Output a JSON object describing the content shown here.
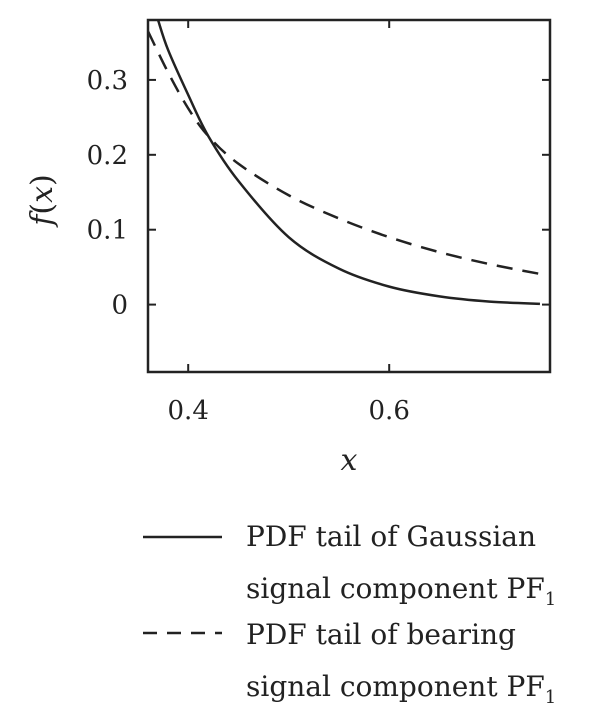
{
  "chart_data": {
    "type": "line",
    "xlabel": "x",
    "ylabel_parts": {
      "f": "f",
      "open": "(",
      "var": "x",
      "close": ")"
    },
    "xlim": [
      0.36,
      0.76
    ],
    "ylim": [
      -0.09,
      0.38
    ],
    "x_ticks": [
      0.4,
      0.6
    ],
    "x_tick_labels": [
      "0.4",
      "0.6"
    ],
    "y_ticks": [
      0,
      0.1,
      0.2,
      0.3
    ],
    "y_tick_labels": [
      "0",
      "0.1",
      "0.2",
      "0.3"
    ],
    "grid": false,
    "legend_position": "bottom",
    "series": [
      {
        "name_line1": "PDF tail of Gaussian",
        "name_line2": "signal component PF",
        "name_sub": "1",
        "style": "solid",
        "color": "#222222",
        "x": [
          0.37,
          0.38,
          0.4,
          0.42,
          0.45,
          0.5,
          0.55,
          0.6,
          0.65,
          0.7,
          0.75
        ],
        "y": [
          0.38,
          0.34,
          0.28,
          0.225,
          0.165,
          0.09,
          0.048,
          0.024,
          0.011,
          0.004,
          0.001
        ]
      },
      {
        "name_line1": "PDF tail of bearing",
        "name_line2": "signal component PF",
        "name_sub": "1",
        "style": "dashed",
        "color": "#222222",
        "x": [
          0.36,
          0.38,
          0.4,
          0.42,
          0.45,
          0.5,
          0.55,
          0.6,
          0.65,
          0.7,
          0.75
        ],
        "y": [
          0.365,
          0.31,
          0.262,
          0.225,
          0.188,
          0.146,
          0.115,
          0.09,
          0.07,
          0.054,
          0.041
        ]
      }
    ]
  }
}
